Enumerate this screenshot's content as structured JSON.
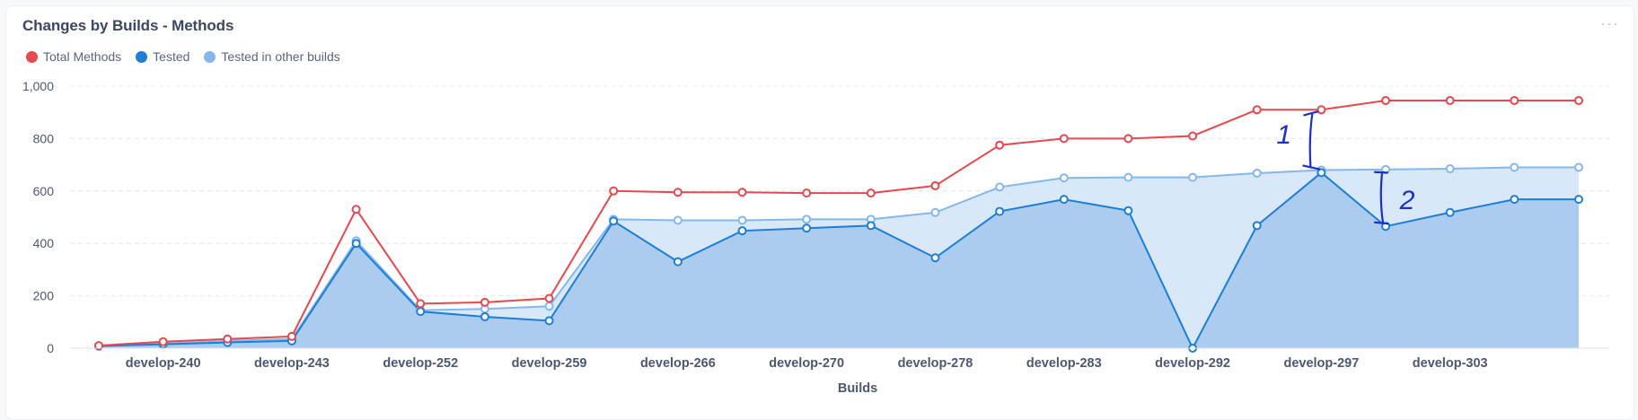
{
  "card": {
    "title": "Changes by Builds - Methods",
    "menu_icon": "ellipsis-icon"
  },
  "colors": {
    "total": "#e5484d",
    "tested": "#1c7ed6",
    "other": "#84b8ec",
    "area_other": "#d8e8f8",
    "area_tested": "#acccef",
    "grid": "#e4e7ec"
  },
  "chart_data": {
    "type": "area",
    "xlabel": "Builds",
    "ylabel": "",
    "ylim": [
      0,
      1000
    ],
    "yticks": [
      0,
      200,
      400,
      600,
      800,
      1000
    ],
    "ytick_labels": [
      "0",
      "200",
      "400",
      "600",
      "800",
      "1,000"
    ],
    "grid": true,
    "legend_position": "top-left",
    "x_tick_labels": [
      "develop-240",
      "develop-243",
      "develop-252",
      "develop-259",
      "develop-266",
      "develop-270",
      "develop-278",
      "develop-283",
      "develop-292",
      "develop-297",
      "develop-303"
    ],
    "point_count": 24,
    "series": [
      {
        "name": "Total Methods",
        "key": "total",
        "values": [
          10,
          25,
          35,
          45,
          530,
          170,
          175,
          190,
          600,
          595,
          595,
          592,
          592,
          620,
          775,
          800,
          800,
          810,
          910,
          910,
          945,
          945,
          945,
          945
        ]
      },
      {
        "name": "Tested",
        "key": "tested",
        "values": [
          8,
          15,
          22,
          28,
          400,
          140,
          120,
          105,
          485,
          330,
          448,
          458,
          468,
          345,
          522,
          568,
          525,
          0,
          468,
          670,
          465,
          518,
          568,
          568
        ]
      },
      {
        "name": "Tested in other builds",
        "key": "other",
        "values": [
          8,
          18,
          28,
          35,
          410,
          145,
          150,
          160,
          492,
          488,
          488,
          492,
          492,
          518,
          615,
          650,
          652,
          652,
          668,
          680,
          682,
          685,
          690,
          690
        ]
      }
    ],
    "annotations": [
      {
        "text": "1"
      },
      {
        "text": "2"
      }
    ]
  }
}
